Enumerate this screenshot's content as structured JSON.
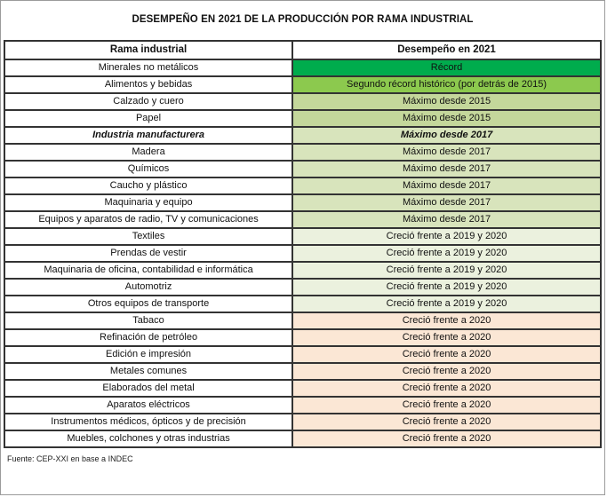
{
  "page": {
    "title": "DESEMPEÑO EN 2021 DE LA PRODUCCIÓN POR RAMA INDUSTRIAL",
    "source": "Fuente: CEP-XXI en base a INDEC"
  },
  "colors": {
    "record": "#00AC4D",
    "segundo_record": "#8CC94E",
    "maximo_2015": "#C4D79B",
    "maximo_2017": "#D8E4BC",
    "crecio_2019_2020": "#EBF1DE",
    "crecio_2020": "#FBE7D5",
    "border": "#333333",
    "rama_cell_bg": "#FFFFFF"
  },
  "chart_data": {
    "type": "table",
    "title": "DESEMPEÑO EN 2021 DE LA PRODUCCIÓN POR RAMA INDUSTRIAL",
    "columns": [
      "Rama industrial",
      "Desempeño en 2021"
    ],
    "source": "Fuente: CEP-XXI en base a INDEC",
    "legend_position": "none",
    "rows": [
      {
        "rama": "Minerales no metálicos",
        "desempeno": "Récord",
        "tone": "record",
        "emphasis": false
      },
      {
        "rama": "Alimentos y bebidas",
        "desempeno": "Segundo récord histórico (por detrás de 2015)",
        "tone": "segundo_record",
        "emphasis": false
      },
      {
        "rama": "Calzado y cuero",
        "desempeno": "Máximo desde 2015",
        "tone": "maximo_2015",
        "emphasis": false
      },
      {
        "rama": "Papel",
        "desempeno": "Máximo desde 2015",
        "tone": "maximo_2015",
        "emphasis": false
      },
      {
        "rama": "Industria manufacturera",
        "desempeno": "Máximo desde 2017",
        "tone": "maximo_2017",
        "emphasis": true
      },
      {
        "rama": "Madera",
        "desempeno": "Máximo desde 2017",
        "tone": "maximo_2017",
        "emphasis": false
      },
      {
        "rama": "Químicos",
        "desempeno": "Máximo desde 2017",
        "tone": "maximo_2017",
        "emphasis": false
      },
      {
        "rama": "Caucho y plástico",
        "desempeno": "Máximo desde 2017",
        "tone": "maximo_2017",
        "emphasis": false
      },
      {
        "rama": "Maquinaria y equipo",
        "desempeno": "Máximo desde 2017",
        "tone": "maximo_2017",
        "emphasis": false
      },
      {
        "rama": "Equipos y aparatos de radio, TV y comunicaciones",
        "desempeno": "Máximo desde 2017",
        "tone": "maximo_2017",
        "emphasis": false
      },
      {
        "rama": "Textiles",
        "desempeno": "Creció frente a 2019 y 2020",
        "tone": "crecio_2019_2020",
        "emphasis": false
      },
      {
        "rama": "Prendas de vestir",
        "desempeno": "Creció frente a 2019 y 2020",
        "tone": "crecio_2019_2020",
        "emphasis": false
      },
      {
        "rama": "Maquinaria de oficina, contabilidad e informática",
        "desempeno": "Creció frente a 2019 y 2020",
        "tone": "crecio_2019_2020",
        "emphasis": false
      },
      {
        "rama": "Automotriz",
        "desempeno": "Creció frente a 2019 y 2020",
        "tone": "crecio_2019_2020",
        "emphasis": false
      },
      {
        "rama": "Otros equipos de transporte",
        "desempeno": "Creció frente a 2019 y 2020",
        "tone": "crecio_2019_2020",
        "emphasis": false
      },
      {
        "rama": "Tabaco",
        "desempeno": "Creció frente a 2020",
        "tone": "crecio_2020",
        "emphasis": false
      },
      {
        "rama": "Refinación de petróleo",
        "desempeno": "Creció frente a 2020",
        "tone": "crecio_2020",
        "emphasis": false
      },
      {
        "rama": "Edición e impresión",
        "desempeno": "Creció frente a 2020",
        "tone": "crecio_2020",
        "emphasis": false
      },
      {
        "rama": "Metales comunes",
        "desempeno": "Creció frente a 2020",
        "tone": "crecio_2020",
        "emphasis": false
      },
      {
        "rama": "Elaborados del metal",
        "desempeno": "Creció frente a 2020",
        "tone": "crecio_2020",
        "emphasis": false
      },
      {
        "rama": "Aparatos eléctricos",
        "desempeno": "Creció frente a 2020",
        "tone": "crecio_2020",
        "emphasis": false
      },
      {
        "rama": "Instrumentos médicos, ópticos y de precisión",
        "desempeno": "Creció frente a 2020",
        "tone": "crecio_2020",
        "emphasis": false
      },
      {
        "rama": "Muebles, colchones y otras industrias",
        "desempeno": "Creció frente a 2020",
        "tone": "crecio_2020",
        "emphasis": false
      }
    ]
  }
}
